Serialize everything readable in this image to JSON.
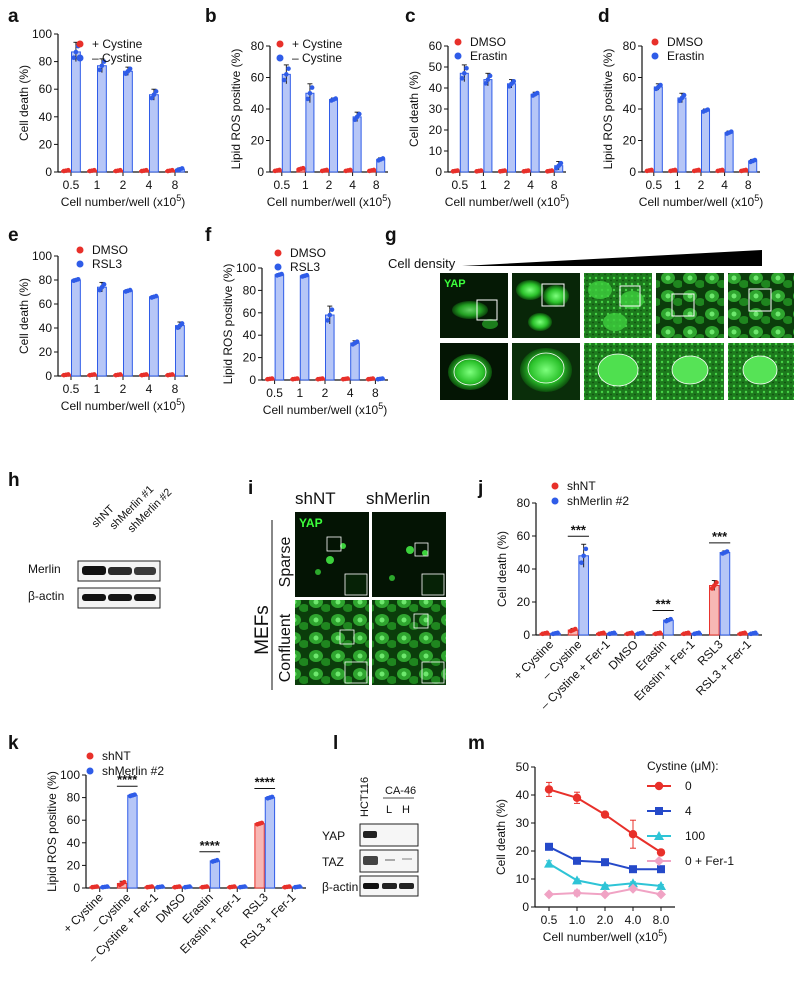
{
  "panel_letters": {
    "a": "a",
    "b": "b",
    "c": "c",
    "d": "d",
    "e": "e",
    "f": "f",
    "g": "g",
    "h": "h",
    "i": "i",
    "j": "j",
    "k": "k",
    "l": "l",
    "m": "m"
  },
  "chart_data": [
    {
      "id": "a",
      "type": "bar",
      "ylabel": "Cell death (%)",
      "xlabel": "Cell number/well (x10",
      "xlabel_sup": "5",
      "xlabel_tail": ")",
      "categories": [
        "0.5",
        "1",
        "2",
        "4",
        "8"
      ],
      "ylim": [
        0,
        100
      ],
      "yticks": [
        0,
        20,
        40,
        60,
        80,
        100
      ],
      "series": [
        {
          "name": "+ Cystine",
          "color": "#e8302a",
          "values": [
            1,
            1,
            1,
            1,
            1
          ],
          "err": [
            0.5,
            0.5,
            0.5,
            0.5,
            0.5
          ]
        },
        {
          "name": "– Cystine",
          "color": "#2f5ce8",
          "values": [
            87,
            77,
            73,
            56,
            2
          ],
          "err": [
            7,
            5,
            3,
            4,
            1
          ]
        }
      ]
    },
    {
      "id": "b",
      "type": "bar",
      "ylabel": "Lipid ROS positive (%)",
      "xlabel": "Cell number/well (x10",
      "xlabel_sup": "5",
      "xlabel_tail": ")",
      "categories": [
        "0.5",
        "1",
        "2",
        "4",
        "8"
      ],
      "ylim": [
        0,
        80
      ],
      "yticks": [
        0,
        20,
        40,
        60,
        80
      ],
      "series": [
        {
          "name": "+ Cystine",
          "color": "#e8302a",
          "values": [
            1,
            2,
            1,
            1,
            1
          ],
          "err": [
            0.5,
            0.7,
            0.5,
            0.5,
            0.5
          ]
        },
        {
          "name": "– Cystine",
          "color": "#2f5ce8",
          "values": [
            62,
            50,
            46,
            35,
            8
          ],
          "err": [
            6,
            6,
            1,
            3,
            1
          ]
        }
      ]
    },
    {
      "id": "c",
      "type": "bar",
      "ylabel": "Cell death (%)",
      "xlabel": "Cell number/well (x10",
      "xlabel_sup": "5",
      "xlabel_tail": ")",
      "categories": [
        "0.5",
        "1",
        "2",
        "4",
        "8"
      ],
      "ylim": [
        0,
        60
      ],
      "yticks": [
        0,
        10,
        20,
        30,
        40,
        50,
        60
      ],
      "series": [
        {
          "name": "DMSO",
          "color": "#e8302a",
          "values": [
            0.5,
            0.5,
            0.5,
            0.5,
            0.5
          ],
          "err": [
            0.3,
            0.3,
            0.3,
            0.3,
            0.3
          ]
        },
        {
          "name": "Erastin",
          "color": "#2f5ce8",
          "values": [
            47,
            44,
            42,
            37,
            3
          ],
          "err": [
            4,
            3,
            2,
            1,
            2
          ]
        }
      ]
    },
    {
      "id": "d",
      "type": "bar",
      "ylabel": "Lipid ROS positive (%)",
      "xlabel": "Cell number/well (x10",
      "xlabel_sup": "5",
      "xlabel_tail": ")",
      "categories": [
        "0.5",
        "1",
        "2",
        "4",
        "8"
      ],
      "ylim": [
        0,
        80
      ],
      "yticks": [
        0,
        20,
        40,
        60,
        80
      ],
      "series": [
        {
          "name": "DMSO",
          "color": "#e8302a",
          "values": [
            1,
            1,
            1,
            1,
            1
          ],
          "err": [
            0.5,
            0.5,
            0.5,
            0.5,
            0.5
          ]
        },
        {
          "name": "Erastin",
          "color": "#2f5ce8",
          "values": [
            54,
            47,
            39,
            25,
            7
          ],
          "err": [
            2,
            3,
            1,
            1,
            1
          ]
        }
      ]
    },
    {
      "id": "e",
      "type": "bar",
      "ylabel": "Cell death (%)",
      "xlabel": "Cell number/well (x10",
      "xlabel_sup": "5",
      "xlabel_tail": ")",
      "categories": [
        "0.5",
        "1",
        "2",
        "4",
        "8"
      ],
      "ylim": [
        0,
        100
      ],
      "yticks": [
        0,
        20,
        40,
        60,
        80,
        100
      ],
      "series": [
        {
          "name": "DMSO",
          "color": "#e8302a",
          "values": [
            1,
            1,
            1,
            1,
            1
          ],
          "err": [
            0.5,
            0.5,
            0.5,
            0.5,
            0.5
          ]
        },
        {
          "name": "RSL3",
          "color": "#2f5ce8",
          "values": [
            80,
            74,
            71,
            66,
            42
          ],
          "err": [
            1,
            4,
            1,
            1,
            3
          ]
        }
      ]
    },
    {
      "id": "f",
      "type": "bar",
      "ylabel": "Lipid ROS positive (%)",
      "xlabel": "Cell number/well (x10",
      "xlabel_sup": "5",
      "xlabel_tail": ")",
      "categories": [
        "0.5",
        "1",
        "2",
        "4",
        "8"
      ],
      "ylim": [
        0,
        100
      ],
      "yticks": [
        0,
        20,
        40,
        60,
        80,
        100
      ],
      "series": [
        {
          "name": "DMSO",
          "color": "#e8302a",
          "values": [
            1,
            1,
            1,
            1,
            1
          ],
          "err": [
            0.5,
            0.5,
            0.5,
            0.5,
            0.5
          ]
        },
        {
          "name": "RSL3",
          "color": "#2f5ce8",
          "values": [
            94,
            93,
            58,
            33,
            1
          ],
          "err": [
            1,
            1,
            8,
            2,
            0.5
          ]
        }
      ]
    },
    {
      "id": "j",
      "type": "bar",
      "ylabel": "Cell death (%)",
      "categories": [
        "+ Cystine",
        "– Cystine",
        "– Cystine + Fer-1",
        "DMSO",
        "Erastin",
        "Erastin + Fer-1",
        "RSL3",
        "RSL3 + Fer-1"
      ],
      "ylim": [
        0,
        80
      ],
      "yticks": [
        0,
        20,
        40,
        60,
        80
      ],
      "series": [
        {
          "name": "shNT",
          "color": "#e8302a",
          "values": [
            1,
            3,
            1,
            1,
            1,
            1,
            30,
            1
          ],
          "err": [
            0.5,
            1,
            0.5,
            0.5,
            0.5,
            0.5,
            3,
            0.5
          ]
        },
        {
          "name": "shMerlin #2",
          "color": "#2f5ce8",
          "values": [
            1,
            48,
            1,
            1,
            9,
            1,
            50,
            1
          ],
          "err": [
            0.5,
            7,
            0.5,
            0.5,
            1,
            0.5,
            1,
            0.5
          ]
        }
      ],
      "annotations": [
        "***",
        "***",
        "***"
      ]
    },
    {
      "id": "k",
      "type": "bar",
      "ylabel": "Lipid ROS positive (%)",
      "categories": [
        "+ Cystine",
        "– Cystine",
        "– Cystine + Fer-1",
        "DMSO",
        "Erastin",
        "Erastin + Fer-1",
        "RSL3",
        "RSL3 + Fer-1"
      ],
      "ylim": [
        0,
        100
      ],
      "yticks": [
        0,
        20,
        40,
        60,
        80,
        100
      ],
      "series": [
        {
          "name": "shNT",
          "color": "#e8302a",
          "values": [
            1,
            4,
            1,
            1,
            1,
            1,
            57,
            1
          ],
          "err": [
            0.5,
            2,
            0.5,
            0.5,
            0.5,
            0.5,
            1,
            0.5
          ]
        },
        {
          "name": "shMerlin #2",
          "color": "#2f5ce8",
          "values": [
            1,
            82,
            1,
            1,
            24,
            1,
            80,
            1
          ],
          "err": [
            0.5,
            1,
            0.5,
            0.5,
            1,
            0.5,
            1,
            0.5
          ]
        }
      ],
      "annotations": [
        "****",
        "****",
        "****"
      ]
    },
    {
      "id": "m",
      "type": "line",
      "ylabel": "Cell death (%)",
      "xlabel": "Cell number/well (x10",
      "xlabel_sup": "5",
      "xlabel_tail": ")",
      "categories": [
        "0.5",
        "1.0",
        "2.0",
        "4.0",
        "8.0"
      ],
      "ylim": [
        0,
        50
      ],
      "yticks": [
        0,
        10,
        20,
        30,
        40,
        50
      ],
      "legend_title": "Cystine (μM):",
      "series": [
        {
          "name": "0",
          "color": "#e8302a",
          "marker": "circle",
          "values": [
            42,
            39,
            33,
            26,
            19.5
          ],
          "err": [
            2.5,
            2,
            0.5,
            5,
            0.5
          ]
        },
        {
          "name": "4",
          "color": "#2549c9",
          "marker": "square",
          "values": [
            21.5,
            16.5,
            16,
            13.5,
            13.5
          ],
          "err": [
            0.5,
            0.5,
            0.5,
            0.5,
            0.5
          ]
        },
        {
          "name": "100",
          "color": "#2ec4d6",
          "marker": "triangle",
          "values": [
            15.5,
            9.5,
            7.5,
            8.5,
            7.5
          ],
          "err": [
            1,
            0.5,
            0.5,
            0.5,
            0.5
          ]
        },
        {
          "name": "0 + Fer-1",
          "color": "#f0a3c4",
          "marker": "diamond",
          "values": [
            4.5,
            5,
            4.5,
            6.5,
            4.5
          ],
          "err": [
            0.5,
            1,
            0.5,
            0.5,
            0.5
          ]
        }
      ]
    }
  ],
  "panel_g": {
    "cell_density_label": "Cell density",
    "channel_label": "YAP"
  },
  "panel_h": {
    "lanes": [
      "shNT",
      "shMerlin #1",
      "shMerlin #2"
    ],
    "rows": [
      "Merlin",
      "β-actin"
    ]
  },
  "panel_i": {
    "col_labels": [
      "shNT",
      "shMerlin"
    ],
    "channel_label": "YAP",
    "cell_label": "MEFs",
    "row_labels": [
      "Sparse",
      "Confluent"
    ]
  },
  "panel_l": {
    "lanes": [
      "HCT116",
      "CA-46"
    ],
    "ca46_sublanes": [
      "L",
      "H"
    ],
    "rows": [
      "YAP",
      "TAZ",
      "β-actin"
    ]
  }
}
